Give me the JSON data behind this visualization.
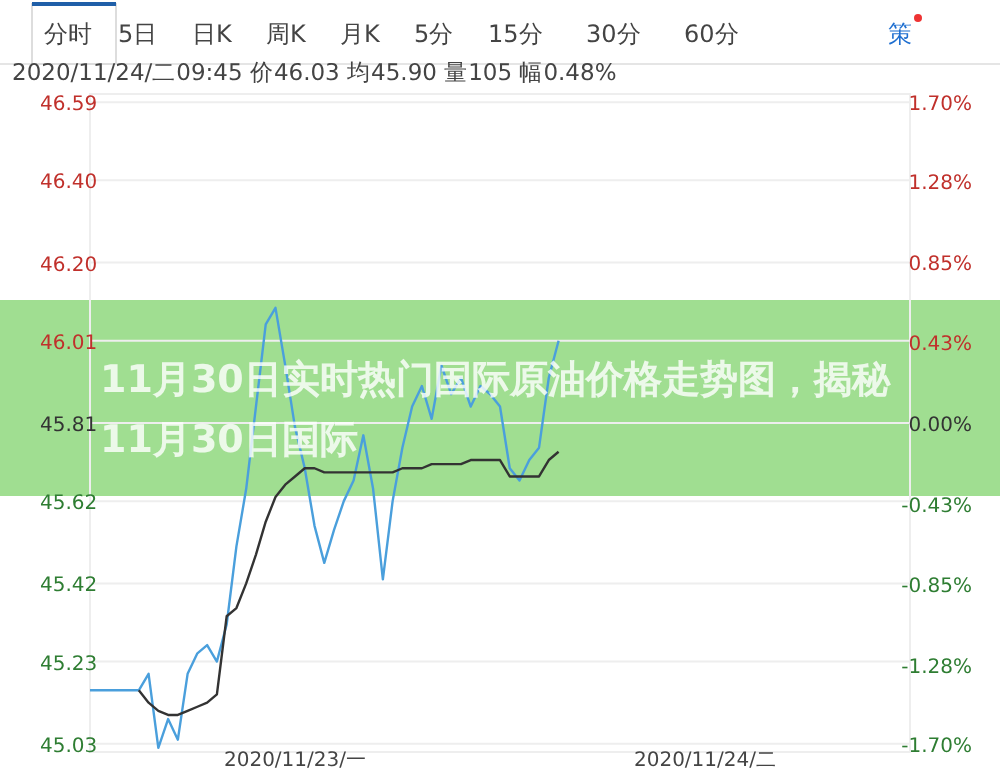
{
  "chart_data": {
    "type": "line",
    "title": "11月30日实时热门国际原油价格走势图，揭秘11月30日国际",
    "annotations": [
      "分时",
      "5日",
      "日K",
      "周K",
      "月K",
      "5分",
      "15分",
      "30分",
      "60分",
      "策",
      "2020/11/24/二09:45 价46.03 均45.90 量105 幅0.48%"
    ],
    "categories": [
      null,
      null,
      null,
      null,
      null,
      null,
      null,
      null,
      null,
      null,
      null,
      null,
      null,
      null,
      null,
      null,
      null,
      null,
      null,
      null,
      null,
      "2020/11/23/一",
      null,
      null,
      null,
      null,
      null,
      null,
      null,
      null,
      null,
      null,
      null,
      null,
      null,
      null,
      null,
      null,
      null,
      null,
      null,
      null,
      null,
      null,
      null,
      null,
      null,
      null,
      null,
      null,
      null,
      null,
      null,
      null,
      null,
      null,
      null,
      null,
      null,
      null,
      null,
      null,
      null,
      "2020/11/24/二",
      null,
      null,
      null,
      null,
      null,
      null,
      null,
      null,
      null,
      null,
      null,
      null,
      null,
      null,
      null,
      null,
      null,
      null,
      null,
      null
    ],
    "series": [
      {
        "color": "#4a9fdc",
        "values": [
          45.16,
          45.16,
          45.16,
          45.16,
          45.16,
          45.16,
          45.2,
          45.02,
          45.09,
          45.04,
          45.2,
          45.25,
          45.27,
          45.23,
          45.32,
          45.51,
          45.65,
          45.85,
          46.05,
          46.09,
          45.95,
          45.8,
          45.7,
          45.56,
          45.47,
          45.55,
          45.62,
          45.67,
          45.78,
          45.65,
          45.43,
          45.62,
          45.75,
          45.85,
          45.9,
          45.82,
          45.95,
          45.88,
          45.92,
          45.85,
          45.9,
          45.88,
          45.85,
          45.7,
          45.67,
          45.72,
          45.75,
          45.92,
          46.01,
          null,
          null,
          null,
          null,
          null,
          null,
          null,
          null,
          null,
          null,
          null,
          null,
          null,
          null,
          null,
          null,
          null,
          null,
          null,
          null,
          null,
          null,
          null,
          null,
          null,
          null,
          null,
          null,
          null,
          null,
          null,
          null,
          null,
          null,
          null
        ]
      },
      {
        "color": "#333333",
        "values": [
          null,
          null,
          null,
          null,
          null,
          45.16,
          45.13,
          45.11,
          45.1,
          45.1,
          45.11,
          45.12,
          45.13,
          45.15,
          45.34,
          45.36,
          45.42,
          45.49,
          45.57,
          45.63,
          45.66,
          45.68,
          45.7,
          45.7,
          45.69,
          45.69,
          45.69,
          45.69,
          45.69,
          45.69,
          45.69,
          45.69,
          45.7,
          45.7,
          45.7,
          45.71,
          45.71,
          45.71,
          45.71,
          45.72,
          45.72,
          45.72,
          45.72,
          45.68,
          45.68,
          45.68,
          45.68,
          45.72,
          45.74,
          null,
          null,
          null,
          null,
          null,
          null,
          null,
          null,
          null,
          null,
          null,
          null,
          null,
          null,
          null,
          null,
          null,
          null,
          null,
          null,
          null,
          null,
          null,
          null,
          null,
          null,
          null,
          null,
          null,
          null,
          null,
          null,
          null,
          null,
          null
        ]
      }
    ],
    "ylim": [
      45.01,
      46.61
    ],
    "yticks": [
      {
        "value": 46.59,
        "label": "46.59"
      },
      {
        "value": 46.4,
        "label": "46.40"
      },
      {
        "value": 46.2,
        "label": "46.20"
      },
      {
        "value": 46.01,
        "label": "46.01"
      },
      {
        "value": 45.81,
        "label": "45.81"
      },
      {
        "value": 45.62,
        "label": "45.62"
      },
      {
        "value": 45.42,
        "label": "45.42"
      },
      {
        "value": 45.23,
        "label": "45.23"
      },
      {
        "value": 45.03,
        "label": "45.03"
      }
    ],
    "y2lim": [
      -1.74,
      1.74
    ],
    "y2ticks": [
      {
        "value": 1.7,
        "label": "1.70%"
      },
      {
        "value": 1.28,
        "label": "1.28%"
      },
      {
        "value": 0.85,
        "label": "0.85%"
      },
      {
        "value": 0.43,
        "label": "0.43%"
      },
      {
        "value": 0,
        "label": "0.00%"
      },
      {
        "value": -0.43,
        "label": "-0.43%"
      },
      {
        "value": -0.85,
        "label": "-0.85%"
      },
      {
        "value": -1.28,
        "label": "-1.28%"
      },
      {
        "value": -1.7,
        "label": "-1.70%"
      }
    ],
    "grid": "y",
    "marker": "none"
  }
}
